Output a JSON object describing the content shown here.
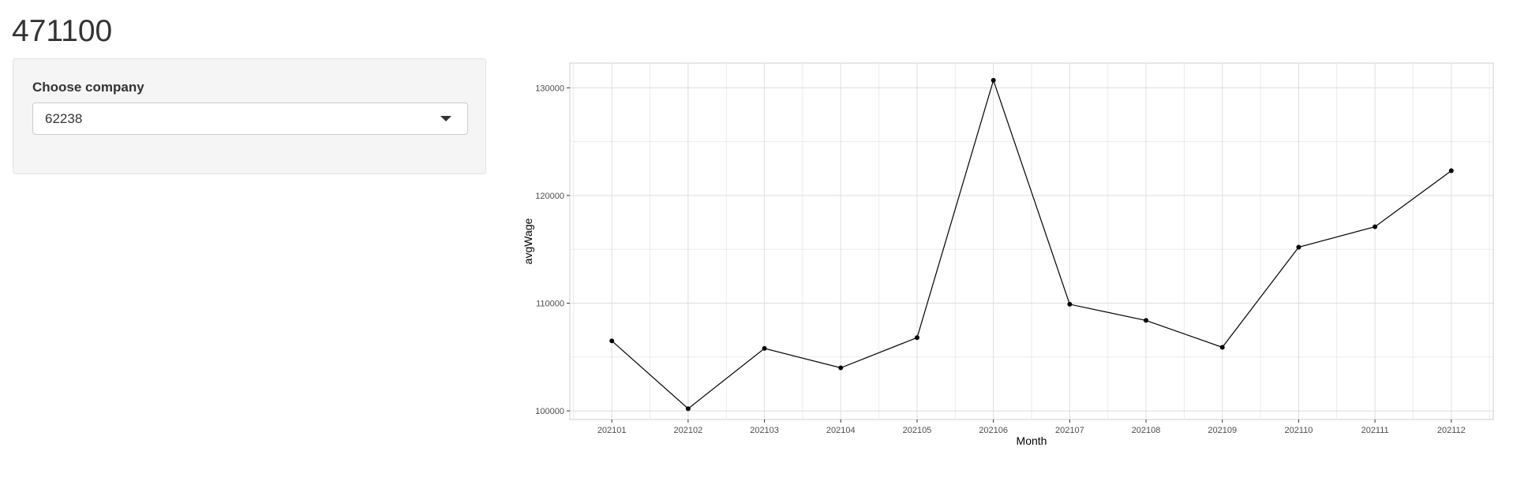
{
  "page": {
    "title": "471100"
  },
  "sidebar": {
    "select_label": "Choose company",
    "selected_value": "62238"
  },
  "chart_data": {
    "type": "line",
    "xlabel": "Month",
    "ylabel": "avgWage",
    "categories": [
      "202101",
      "202102",
      "202103",
      "202104",
      "202105",
      "202106",
      "202107",
      "202108",
      "202109",
      "202110",
      "202111",
      "202112"
    ],
    "values": [
      106500,
      100200,
      105800,
      104000,
      106800,
      130700,
      109900,
      108400,
      105900,
      115200,
      117100,
      122300
    ],
    "ylim": [
      99200,
      132300
    ],
    "yticks": [
      100000,
      110000,
      120000,
      130000
    ],
    "yticklabels": [
      "100000",
      "110000",
      "120000",
      "130000"
    ],
    "grid": true,
    "markers": true,
    "colors": {
      "line": "#000000",
      "grid": "#dedede",
      "panel_border": "#cfcfcf"
    }
  }
}
